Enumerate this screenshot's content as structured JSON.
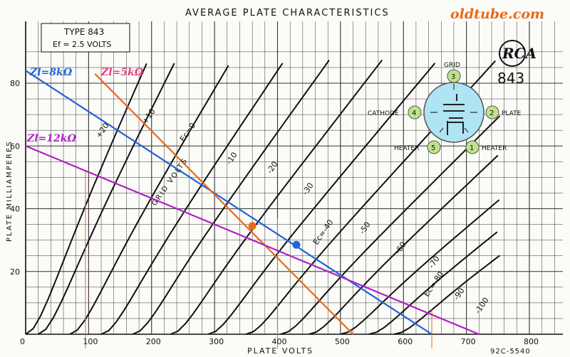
{
  "watermark": "oldtube.com",
  "colors": {
    "accent_orange": "#e86a1a",
    "brand_blue": "#1f63d6",
    "load_purple": "#b020c8",
    "load_pink": "#e0407a",
    "base_socket": "#aee4f4",
    "pin": "#bfe38a"
  },
  "chart_data": {
    "type": "line",
    "title": "AVERAGE PLATE CHARACTERISTICS",
    "type_label": "TYPE 843",
    "filament_label": "Ef = 2.5 VOLTS",
    "xlabel": "PLATE VOLTS",
    "ylabel": "PLATE MILLIAMPERES",
    "xlim": [
      0,
      800
    ],
    "ylim": [
      0,
      90
    ],
    "x_ticks": [
      "0",
      "100",
      "200",
      "300",
      "400",
      "500",
      "600",
      "700",
      "800"
    ],
    "y_ticks": [
      "20",
      "40",
      "60",
      "80"
    ],
    "grid": true,
    "drawing_no": "92C-5540",
    "grid_label": "GRID VOLTS",
    "curve_labels": [
      "+20",
      "+10",
      "Ec=0",
      "-10",
      "-20",
      "-30",
      "Ec=-40",
      "-50",
      "-60",
      "-70",
      "Ec=-80",
      "-90",
      "-100"
    ],
    "curves": [
      {
        "ec": 20,
        "x0": 0,
        "slope": 0.45
      },
      {
        "ec": 10,
        "x0": 20,
        "slope": 0.4
      },
      {
        "ec": 0,
        "x0": 70,
        "slope": 0.34
      },
      {
        "ec": -10,
        "x0": 120,
        "slope": 0.3
      },
      {
        "ec": -20,
        "x0": 170,
        "slope": 0.28
      },
      {
        "ec": -30,
        "x0": 230,
        "slope": 0.26
      },
      {
        "ec": -40,
        "x0": 290,
        "slope": 0.24
      },
      {
        "ec": -50,
        "x0": 350,
        "slope": 0.22
      },
      {
        "ec": -60,
        "x0": 405,
        "slope": 0.2
      },
      {
        "ec": -70,
        "x0": 450,
        "slope": 0.19
      },
      {
        "ec": -80,
        "x0": 500,
        "slope": 0.17
      },
      {
        "ec": -90,
        "x0": 545,
        "slope": 0.16
      },
      {
        "ec": -100,
        "x0": 585,
        "slope": 0.15
      }
    ],
    "load_lines": [
      {
        "label": "Zl=8kΩ",
        "color": "#1f63d6",
        "x": [
          0,
          645
        ],
        "y": [
          84,
          0
        ]
      },
      {
        "label": "Zl=5kΩ",
        "color": "#e86a1a",
        "x": [
          110,
          520
        ],
        "y": [
          83,
          0
        ]
      },
      {
        "label": "Zl=12kΩ",
        "color": "#b020c8",
        "x": [
          0,
          720
        ],
        "y": [
          60,
          0
        ]
      }
    ],
    "operating_points": [
      {
        "x": 360,
        "y": 34.5,
        "color": "#e86a1a"
      },
      {
        "x": 430,
        "y": 28.5,
        "color": "#1f63d6"
      }
    ],
    "verticals": [
      95,
      400,
      645
    ]
  },
  "tube": {
    "brand": "RCA",
    "number": "843",
    "pins": [
      {
        "n": "3",
        "name": "GRID"
      },
      {
        "n": "4",
        "name": "CATHODE"
      },
      {
        "n": "2",
        "name": "PLATE"
      },
      {
        "n": "5",
        "name": "HEATER"
      },
      {
        "n": "1",
        "name": "HEATER"
      }
    ]
  }
}
